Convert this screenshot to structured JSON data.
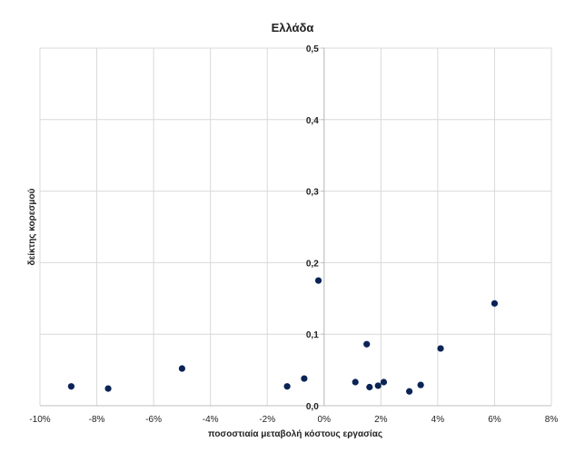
{
  "chart_data": {
    "type": "scatter",
    "title": "Ελλάδα",
    "xlabel": "ποσοστιαία μεταβολή κόστους εργασίας",
    "ylabel": "δείκτης κορεσμού",
    "xlim": [
      -0.1,
      0.08
    ],
    "ylim": [
      0,
      0.5
    ],
    "x_ticks": [
      -0.1,
      -0.08,
      -0.06,
      -0.04,
      -0.02,
      0.0,
      0.02,
      0.04,
      0.06,
      0.08
    ],
    "x_tick_labels": [
      "-10%",
      "-8%",
      "-6%",
      "-4%",
      "-2%",
      "0%",
      "2%",
      "4%",
      "6%",
      "8%"
    ],
    "y_ticks": [
      0,
      0.1,
      0.2,
      0.3,
      0.4,
      0.5
    ],
    "y_tick_labels": [
      "0,0",
      "0,1",
      "0,2",
      "0,3",
      "0,4",
      "0,5"
    ],
    "grid": true,
    "marker_color": "#0b2456",
    "points": [
      {
        "x": -0.089,
        "y": 0.027
      },
      {
        "x": -0.076,
        "y": 0.024
      },
      {
        "x": -0.05,
        "y": 0.052
      },
      {
        "x": -0.013,
        "y": 0.027
      },
      {
        "x": -0.007,
        "y": 0.038
      },
      {
        "x": -0.002,
        "y": 0.175
      },
      {
        "x": 0.011,
        "y": 0.033
      },
      {
        "x": 0.015,
        "y": 0.086
      },
      {
        "x": 0.016,
        "y": 0.026
      },
      {
        "x": 0.019,
        "y": 0.028
      },
      {
        "x": 0.021,
        "y": 0.033
      },
      {
        "x": 0.03,
        "y": 0.02
      },
      {
        "x": 0.034,
        "y": 0.029
      },
      {
        "x": 0.041,
        "y": 0.08
      },
      {
        "x": 0.06,
        "y": 0.143
      }
    ]
  }
}
